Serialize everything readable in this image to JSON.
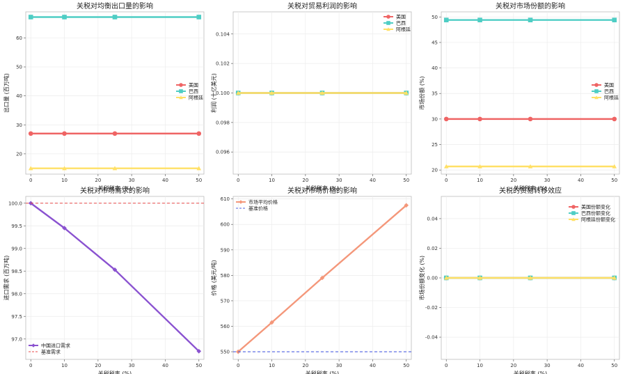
{
  "chart_data": [
    {
      "type": "line",
      "title": "关税对均衡出口量的影响",
      "xlabel": "关税税率 (%)",
      "ylabel": "出口量 (百万吨)",
      "x": [
        0,
        10,
        25,
        50
      ],
      "xticks": [
        "0",
        "10",
        "20",
        "30",
        "40",
        "50"
      ],
      "xlim": [
        -1.5,
        51.5
      ],
      "ylim": [
        13,
        69
      ],
      "yticks": [
        "20",
        "30",
        "40",
        "50",
        "60"
      ],
      "grid": true,
      "legend_position": "center-right",
      "series": [
        {
          "name": "美国",
          "values": [
            27,
            27,
            27,
            27
          ],
          "color": "#ef6464",
          "marker": "circle"
        },
        {
          "name": "巴西",
          "values": [
            67.2,
            67.2,
            67.2,
            67.2
          ],
          "color": "#4ecdc4",
          "marker": "square"
        },
        {
          "name": "阿根廷",
          "values": [
            15,
            15,
            15,
            15
          ],
          "color": "#ffe066",
          "marker": "triangle"
        }
      ]
    },
    {
      "type": "line",
      "title": "关税对贸易利润的影响",
      "xlabel": "关税税率 (%)",
      "ylabel": "利润 (十亿美元)",
      "x": [
        0,
        10,
        25,
        50
      ],
      "xticks": [
        "0",
        "10",
        "20",
        "30",
        "40",
        "50"
      ],
      "xlim": [
        -1.5,
        51.5
      ],
      "ylim": [
        0.0945,
        0.1055
      ],
      "yticks": [
        "0.096",
        "0.098",
        "0.100",
        "0.102",
        "0.104"
      ],
      "grid": true,
      "legend_position": "top-right",
      "series": [
        {
          "name": "美国",
          "values": [
            0.1,
            0.1,
            0.1,
            0.1
          ],
          "color": "#ef6464",
          "marker": "circle"
        },
        {
          "name": "巴西",
          "values": [
            0.1,
            0.1,
            0.1,
            0.1
          ],
          "color": "#4ecdc4",
          "marker": "square"
        },
        {
          "name": "阿根廷",
          "values": [
            0.1,
            0.1,
            0.1,
            0.1
          ],
          "color": "#ffe066",
          "marker": "triangle"
        }
      ]
    },
    {
      "type": "line",
      "title": "关税对市场份额的影响",
      "xlabel": "关税税率 (%)",
      "ylabel": "市场份额 (%)",
      "x": [
        0,
        10,
        25,
        50
      ],
      "xticks": [
        "0",
        "10",
        "20",
        "30",
        "40",
        "50"
      ],
      "xlim": [
        -1.5,
        51.5
      ],
      "ylim": [
        19.2,
        51
      ],
      "yticks": [
        "20",
        "25",
        "30",
        "35",
        "40",
        "45",
        "50"
      ],
      "grid": true,
      "legend_position": "center-right",
      "series": [
        {
          "name": "美国",
          "values": [
            30,
            30,
            30,
            30
          ],
          "color": "#ef6464",
          "marker": "circle"
        },
        {
          "name": "巴西",
          "values": [
            49.4,
            49.4,
            49.4,
            49.4
          ],
          "color": "#4ecdc4",
          "marker": "square"
        },
        {
          "name": "阿根廷",
          "values": [
            20.7,
            20.7,
            20.7,
            20.7
          ],
          "color": "#ffe066",
          "marker": "triangle"
        }
      ]
    },
    {
      "type": "line",
      "title": "关税对市场需求的影响",
      "xlabel": "关税税率 (%)",
      "ylabel": "进口需求 (百万吨)",
      "x": [
        0,
        10,
        25,
        50
      ],
      "xticks": [
        "0",
        "10",
        "20",
        "30",
        "40",
        "50"
      ],
      "xlim": [
        -1.5,
        51.5
      ],
      "ylim": [
        96.55,
        100.15
      ],
      "yticks": [
        "97.0",
        "97.5",
        "98.0",
        "98.5",
        "99.0",
        "99.5",
        "100.0"
      ],
      "grid": true,
      "legend_position": "bottom-left",
      "series": [
        {
          "name": "中国进口需求",
          "values": [
            100.0,
            99.45,
            98.53,
            96.73
          ],
          "color": "#8a52d0",
          "marker": "diamond"
        },
        {
          "name": "基准需求",
          "values": [
            100.0,
            100.0,
            100.0,
            100.0
          ],
          "color": "#e84a4a",
          "dashed": true,
          "span": true
        }
      ]
    },
    {
      "type": "line",
      "title": "关税对市场价格的影响",
      "xlabel": "关税税率 (%)",
      "ylabel": "价格 (美元/吨)",
      "x": [
        0,
        10,
        25,
        50
      ],
      "xticks": [
        "0",
        "10",
        "20",
        "30",
        "40",
        "50"
      ],
      "xlim": [
        -1.5,
        51.5
      ],
      "ylim": [
        547,
        611
      ],
      "yticks": [
        "550",
        "560",
        "570",
        "580",
        "590",
        "600",
        "610"
      ],
      "grid": true,
      "legend_position": "top-left",
      "series": [
        {
          "name": "市场平均价格",
          "values": [
            550,
            561.5,
            579,
            607.5
          ],
          "color": "#f4977a",
          "marker": "diamond"
        },
        {
          "name": "基准价格",
          "values": [
            550,
            550,
            550,
            550
          ],
          "color": "#4d5fe0",
          "dashed": true,
          "span": true
        }
      ]
    },
    {
      "type": "line",
      "title": "关税的贸易转移效应",
      "xlabel": "关税税率 (%)",
      "ylabel": "市场份额变化 (%)",
      "x": [
        0,
        10,
        25,
        50
      ],
      "xticks": [
        "0",
        "10",
        "20",
        "30",
        "40",
        "50"
      ],
      "xlim": [
        -1.5,
        51.5
      ],
      "ylim": [
        -0.055,
        0.055
      ],
      "yticks": [
        "-0.04",
        "-0.02",
        "0.00",
        "0.02",
        "0.04"
      ],
      "grid": true,
      "legend_position": "top-right",
      "series": [
        {
          "name": "美国份额变化",
          "values": [
            0,
            0,
            0,
            0
          ],
          "color": "#ef6464",
          "marker": "circle"
        },
        {
          "name": "巴西份额变化",
          "values": [
            0,
            0,
            0,
            0
          ],
          "color": "#4ecdc4",
          "marker": "square"
        },
        {
          "name": "阿根廷份额变化",
          "values": [
            0,
            0,
            0,
            0
          ],
          "color": "#ffe066",
          "marker": "triangle"
        }
      ]
    }
  ]
}
